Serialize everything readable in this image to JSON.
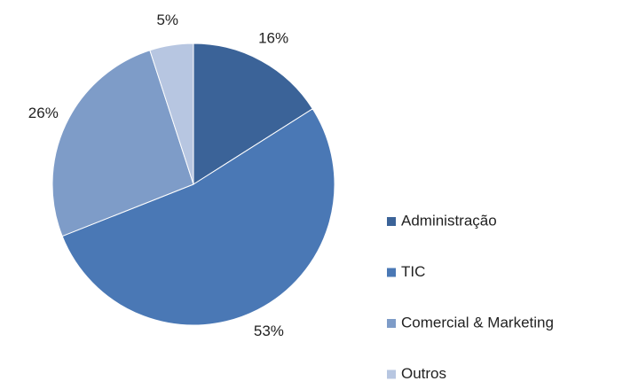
{
  "chart_data": {
    "type": "pie",
    "categories": [
      "Administração",
      "TIC",
      "Comercial & Marketing",
      "Outros"
    ],
    "values": [
      16,
      53,
      26,
      5
    ],
    "value_labels": [
      "16%",
      "53%",
      "26%",
      "5%"
    ],
    "colors": [
      "#3b6398",
      "#4a78b5",
      "#7e9cc8",
      "#b7c6e1"
    ],
    "legend": "right"
  }
}
